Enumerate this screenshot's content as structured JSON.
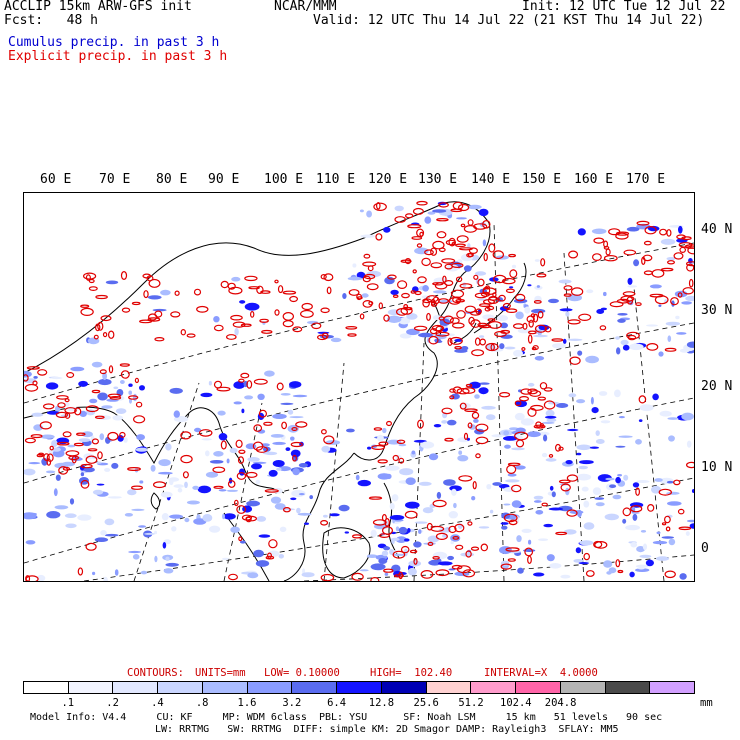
{
  "header": {
    "model": "ACCLIP 15km ARW-GFS init",
    "center": "NCAR/MMM",
    "init": "Init: 12 UTC Tue 12 Jul 22",
    "fcst": "Fcst:   48 h",
    "valid": "Valid: 12 UTC Thu 14 Jul 22 (21 KST Thu 14 Jul 22)",
    "legend_cumulus": "Cumulus precip. in past 3 h",
    "legend_explicit": "Explicit precip. in past 3 h",
    "colors": {
      "cumulus": "#0000d0",
      "explicit": "#e00000"
    }
  },
  "map": {
    "lon_labels": [
      "60 E",
      "70 E",
      "80 E",
      "90 E",
      "100 E",
      "110 E",
      "120 E",
      "130 E",
      "140 E",
      "150 E",
      "160 E",
      "170 E"
    ],
    "lat_labels": [
      "40 N",
      "30 N",
      "20 N",
      "10 N",
      "0"
    ]
  },
  "contours": {
    "label": "CONTOURS:",
    "units": "UNITS=mm",
    "low": "LOW= 0.10000",
    "high": "HIGH=  102.40",
    "interval": "INTERVAL=X  4.0000",
    "color": "#cc0000"
  },
  "colorbar": {
    "colors": [
      "#ffffff",
      "#f2f4ff",
      "#e2e8ff",
      "#cad6ff",
      "#aabcff",
      "#8a9cff",
      "#5a6cf0",
      "#1414ff",
      "#0000b4",
      "#ffd2d2",
      "#ff9ccc",
      "#ff64a8",
      "#b4b4b4",
      "#4a4a4a",
      "#d2a0ff"
    ],
    "labels": [
      ".1",
      ".2",
      ".4",
      ".8",
      "1.6",
      "3.2",
      "6.4",
      "12.8",
      "25.6",
      "51.2",
      "102.4",
      "204.8"
    ],
    "unit": "mm"
  },
  "footer": {
    "line1": "Model Info: V4.4     CU: KF     MP: WDM 6class  PBL: YSU      SF: Noah LSM     15 km   51 levels   90 sec",
    "line2": "LW: RRTMG   SW: RRTMG  DIFF: simple KM: 2D Smagor DAMP: Rayleigh3  SFLAY: MM5"
  }
}
